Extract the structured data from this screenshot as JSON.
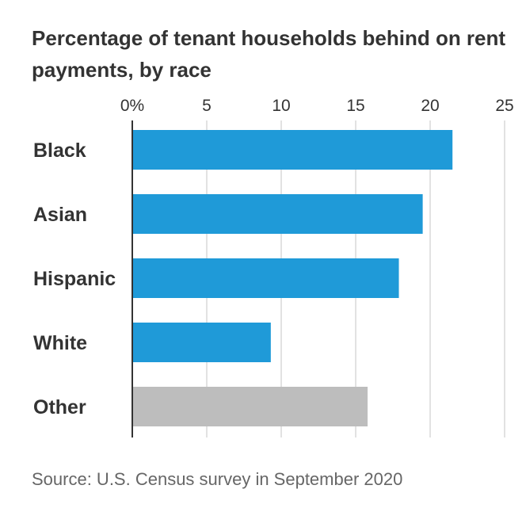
{
  "title": "Percentage of tenant households behind on rent payments, by race",
  "source": "Source: U.S. Census survey in September 2020",
  "chart_data": {
    "type": "bar",
    "orientation": "horizontal",
    "categories": [
      "Black",
      "Asian",
      "Hispanic",
      "White",
      "Other"
    ],
    "values": [
      21.5,
      19.5,
      17.9,
      9.3,
      15.8
    ],
    "colors": [
      "#1f9ad8",
      "#1f9ad8",
      "#1f9ad8",
      "#1f9ad8",
      "#bdbdbd"
    ],
    "xlim": [
      0,
      25
    ],
    "ticks": [
      0,
      5,
      10,
      15,
      20,
      25
    ],
    "tick_labels": [
      "0%",
      "5",
      "10",
      "15",
      "20",
      "25"
    ],
    "grid": true,
    "gridline_color": "#d9d9d9",
    "xlabel": "",
    "ylabel": ""
  }
}
